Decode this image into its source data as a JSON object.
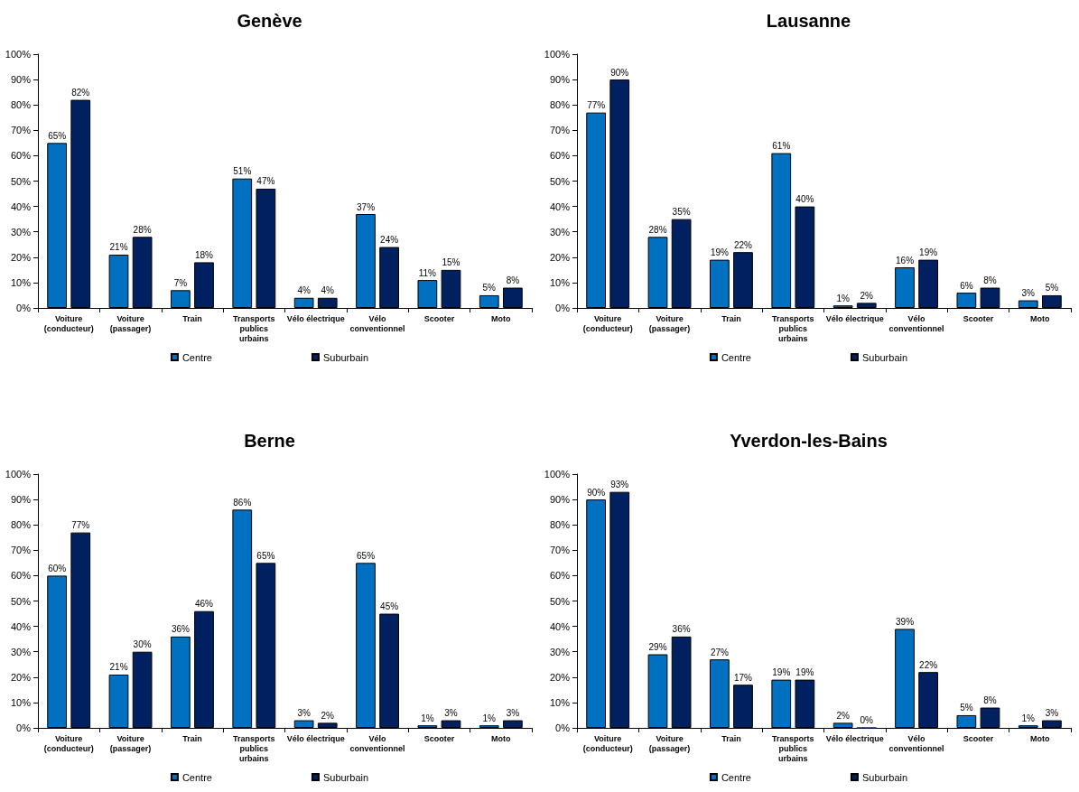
{
  "chart_data": [
    {
      "type": "bar",
      "title": "Genève",
      "categories": [
        "Voiture\n(conducteur)",
        "Voiture\n(passager)",
        "Train",
        "Transports\npublics\nurbains",
        "Vélo électrique",
        "Vélo\nconventionnel",
        "Scooter",
        "Moto"
      ],
      "series": [
        {
          "name": "Centre",
          "color": "#0070c0",
          "values": [
            65,
            21,
            7,
            51,
            4,
            37,
            11,
            5
          ],
          "value_labels": [
            "65%",
            "21%",
            "7%",
            "51%",
            "4%",
            "37%",
            "11%",
            "5%"
          ]
        },
        {
          "name": "Suburbain",
          "color": "#002060",
          "values": [
            82,
            28,
            18,
            47,
            4,
            24,
            15,
            8
          ],
          "value_labels": [
            "82%",
            "28%",
            "18%",
            "47%",
            "4%",
            "24%",
            "15%",
            "8%"
          ]
        }
      ],
      "ylim": [
        0,
        100
      ],
      "yticks": [
        {
          "value": 0,
          "label": "0%"
        },
        {
          "value": 10,
          "label": "10%"
        },
        {
          "value": 20,
          "label": "20%"
        },
        {
          "value": 30,
          "label": "30%"
        },
        {
          "value": 40,
          "label": "40%"
        },
        {
          "value": 50,
          "label": "50%"
        },
        {
          "value": 60,
          "label": "60%"
        },
        {
          "value": 70,
          "label": "70%"
        },
        {
          "value": 80,
          "label": "80%"
        },
        {
          "value": 90,
          "label": "90%"
        },
        {
          "value": 100,
          "label": "100%"
        }
      ],
      "legend": "bottom"
    },
    {
      "type": "bar",
      "title": "Lausanne",
      "categories": [
        "Voiture\n(conducteur)",
        "Voiture\n(passager)",
        "Train",
        "Transports\npublics\nurbains",
        "Vélo électrique",
        "Vélo\nconventionnel",
        "Scooter",
        "Moto"
      ],
      "series": [
        {
          "name": "Centre",
          "color": "#0070c0",
          "values": [
            77,
            28,
            19,
            61,
            1,
            16,
            6,
            3
          ],
          "value_labels": [
            "77%",
            "28%",
            "19%",
            "61%",
            "1%",
            "16%",
            "6%",
            "3%"
          ]
        },
        {
          "name": "Suburbain",
          "color": "#002060",
          "values": [
            90,
            35,
            22,
            40,
            2,
            19,
            8,
            5
          ],
          "value_labels": [
            "90%",
            "35%",
            "22%",
            "40%",
            "2%",
            "19%",
            "8%",
            "5%"
          ]
        }
      ],
      "ylim": [
        0,
        100
      ],
      "yticks": [
        {
          "value": 0,
          "label": "0%"
        },
        {
          "value": 10,
          "label": "10%"
        },
        {
          "value": 20,
          "label": "20%"
        },
        {
          "value": 30,
          "label": "30%"
        },
        {
          "value": 40,
          "label": "40%"
        },
        {
          "value": 50,
          "label": "50%"
        },
        {
          "value": 60,
          "label": "60%"
        },
        {
          "value": 70,
          "label": "70%"
        },
        {
          "value": 80,
          "label": "80%"
        },
        {
          "value": 90,
          "label": "90%"
        },
        {
          "value": 100,
          "label": "100%"
        }
      ],
      "legend": "bottom"
    },
    {
      "type": "bar",
      "title": "Berne",
      "categories": [
        "Voiture\n(conducteur)",
        "Voiture\n(passager)",
        "Train",
        "Transports\npublics\nurbains",
        "Vélo électrique",
        "Vélo\nconventionnel",
        "Scooter",
        "Moto"
      ],
      "series": [
        {
          "name": "Centre",
          "color": "#0070c0",
          "values": [
            60,
            21,
            36,
            86,
            3,
            65,
            1,
            1
          ],
          "value_labels": [
            "60%",
            "21%",
            "36%",
            "86%",
            "3%",
            "65%",
            "1%",
            "1%"
          ]
        },
        {
          "name": "Suburbain",
          "color": "#002060",
          "values": [
            77,
            30,
            46,
            65,
            2,
            45,
            3,
            3
          ],
          "value_labels": [
            "77%",
            "30%",
            "46%",
            "65%",
            "2%",
            "45%",
            "3%",
            "3%"
          ]
        }
      ],
      "ylim": [
        0,
        100
      ],
      "yticks": [
        {
          "value": 0,
          "label": "0%"
        },
        {
          "value": 10,
          "label": "10%"
        },
        {
          "value": 20,
          "label": "20%"
        },
        {
          "value": 30,
          "label": "30%"
        },
        {
          "value": 40,
          "label": "40%"
        },
        {
          "value": 50,
          "label": "50%"
        },
        {
          "value": 60,
          "label": "60%"
        },
        {
          "value": 70,
          "label": "70%"
        },
        {
          "value": 80,
          "label": "80%"
        },
        {
          "value": 90,
          "label": "90%"
        },
        {
          "value": 100,
          "label": "100%"
        }
      ],
      "legend": "bottom"
    },
    {
      "type": "bar",
      "title": "Yverdon-les-Bains",
      "categories": [
        "Voiture\n(conducteur)",
        "Voiture\n(passager)",
        "Train",
        "Transports\npublics\nurbains",
        "Vélo électrique",
        "Vélo\nconventionnel",
        "Scooter",
        "Moto"
      ],
      "series": [
        {
          "name": "Centre",
          "color": "#0070c0",
          "values": [
            90,
            29,
            27,
            19,
            2,
            39,
            5,
            1
          ],
          "value_labels": [
            "90%",
            "29%",
            "27%",
            "19%",
            "2%",
            "39%",
            "5%",
            "1%"
          ]
        },
        {
          "name": "Suburbain",
          "color": "#002060",
          "values": [
            93,
            36,
            17,
            19,
            0,
            22,
            8,
            3
          ],
          "value_labels": [
            "93%",
            "36%",
            "17%",
            "19%",
            "0%",
            "22%",
            "8%",
            "3%"
          ]
        }
      ],
      "ylim": [
        0,
        100
      ],
      "yticks": [
        {
          "value": 0,
          "label": "0%"
        },
        {
          "value": 10,
          "label": "10%"
        },
        {
          "value": 20,
          "label": "20%"
        },
        {
          "value": 30,
          "label": "30%"
        },
        {
          "value": 40,
          "label": "40%"
        },
        {
          "value": 50,
          "label": "50%"
        },
        {
          "value": 60,
          "label": "60%"
        },
        {
          "value": 70,
          "label": "70%"
        },
        {
          "value": 80,
          "label": "80%"
        },
        {
          "value": 90,
          "label": "90%"
        },
        {
          "value": 100,
          "label": "100%"
        }
      ],
      "legend": "bottom"
    }
  ]
}
